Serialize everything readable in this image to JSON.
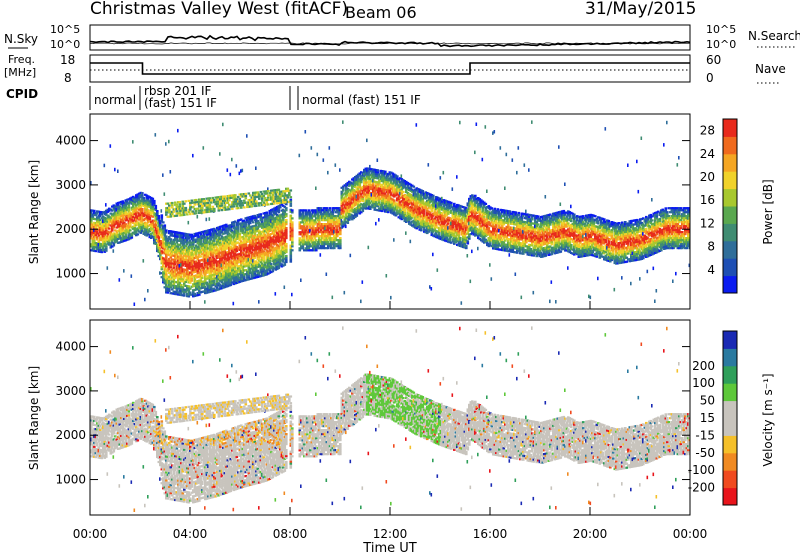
{
  "header": {
    "title": "Christmas Valley West (fitACF)",
    "beam": "Beam 06",
    "date": "31/May/2015"
  },
  "noise_panel": {
    "left_label": "N.Sky",
    "right_label": "N.Search",
    "left_ticks": [
      "10^5",
      "10^0"
    ],
    "right_ticks": [
      "10^5",
      "10^0"
    ]
  },
  "freq_panel": {
    "left_label": [
      "Freq.",
      "[MHz]"
    ],
    "right_label": "Nave",
    "left_ticks": [
      "18",
      "8"
    ],
    "right_ticks": [
      "60",
      "0"
    ]
  },
  "cpid": {
    "label": "CPID",
    "modes": [
      {
        "text": "normal"
      },
      {
        "text": "rbsp 201 IF"
      },
      {
        "text": "(fast) 151 IF"
      },
      {
        "text": "normal (fast) 151 IF"
      }
    ]
  },
  "colors": {
    "power_scale": [
      "#0a1cf0",
      "#1e4fb4",
      "#2f6e9a",
      "#3f8c72",
      "#5aa84f",
      "#a8c82e",
      "#f0d22a",
      "#f5a623",
      "#f06a1e",
      "#e82a1c"
    ],
    "velocity_scale": [
      "#e8141b",
      "#f04a1f",
      "#f08a22",
      "#f5c02a",
      "#c8c4bd",
      "#c8c4bd",
      "#5ec83a",
      "#2f9f5a",
      "#2a7aa0",
      "#1a2ab4"
    ]
  },
  "chart_data": [
    {
      "type": "heatmap",
      "name": "power",
      "ylabel": "Slant Range [km]",
      "yticks": [
        "1000",
        "2000",
        "3000",
        "4000"
      ],
      "ylim": [
        200,
        4600
      ],
      "colorbar_label": "Power [dB]",
      "colorbar_ticks": [
        "4",
        "8",
        "12",
        "16",
        "20",
        "24",
        "28"
      ],
      "colorbar_range": [
        0,
        30
      ],
      "band_center_km": [
        [
          0,
          2000
        ],
        [
          0.5,
          1950
        ],
        [
          1,
          2150
        ],
        [
          1.5,
          2250
        ],
        [
          2,
          2400
        ],
        [
          2.5,
          2250
        ],
        [
          3,
          1300
        ],
        [
          4,
          1200
        ],
        [
          5,
          1350
        ],
        [
          6,
          1550
        ],
        [
          7,
          1700
        ],
        [
          8,
          2000
        ]
      ],
      "band_center_km_2": [
        [
          10,
          2500
        ],
        [
          11,
          2950
        ],
        [
          12,
          2850
        ],
        [
          13,
          2500
        ],
        [
          14,
          2250
        ],
        [
          15,
          2050
        ],
        [
          15.2,
          2400
        ],
        [
          16,
          2050
        ],
        [
          17,
          1950
        ],
        [
          18,
          1850
        ],
        [
          19,
          2000
        ],
        [
          19.5,
          1850
        ],
        [
          20,
          1900
        ],
        [
          21,
          1700
        ],
        [
          22,
          1800
        ],
        [
          23,
          2050
        ],
        [
          24,
          2050
        ]
      ]
    },
    {
      "type": "heatmap",
      "name": "velocity",
      "ylabel": "Slant Range [km]",
      "yticks": [
        "1000",
        "2000",
        "3000",
        "4000"
      ],
      "ylim": [
        200,
        4600
      ],
      "xlabel": "Time UT",
      "xticks": [
        "00:00",
        "04:00",
        "08:00",
        "12:00",
        "16:00",
        "20:00",
        "00:00"
      ],
      "xlim": [
        0,
        24
      ],
      "colorbar_label": "Velocity [m s⁻¹]",
      "colorbar_ticks": [
        "-200",
        "-100",
        "-50",
        "-15",
        "15",
        "50",
        "100",
        "200"
      ],
      "colorbar_range": [
        -250,
        250
      ]
    }
  ]
}
